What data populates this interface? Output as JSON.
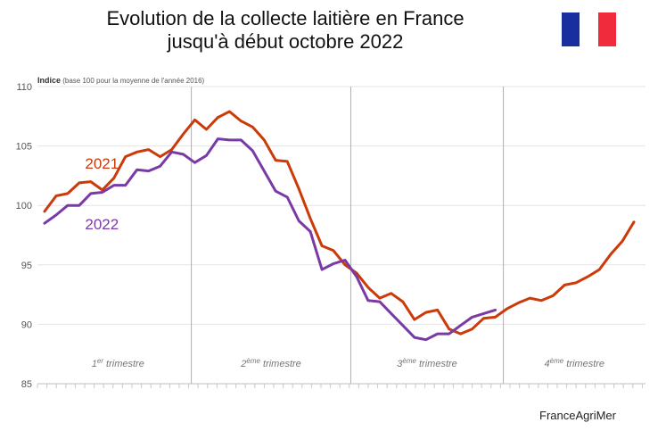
{
  "title_line1": "Evolution de la collecte laitière en France",
  "title_line2": "jusqu'à début octobre 2022",
  "credit": "FranceAgriMer",
  "flag": {
    "colors": [
      "#1a2f9e",
      "#ffffff",
      "#ef2b3c"
    ]
  },
  "chart_data": {
    "type": "line",
    "ylabel_main": "Indice",
    "ylabel_note": "(base 100 pour la moyenne de l'année 2016)",
    "ylim": [
      85,
      110
    ],
    "yticks": [
      85,
      90,
      95,
      100,
      105,
      110
    ],
    "x_count": 53,
    "quarter_boundaries": [
      12.7,
      26.5,
      39.7
    ],
    "quarters": [
      {
        "num": "1",
        "sup": "er",
        "text": " trimestre"
      },
      {
        "num": "2",
        "sup": "ème",
        "text": " trimestre"
      },
      {
        "num": "3",
        "sup": "ème",
        "text": " trimestre"
      },
      {
        "num": "4",
        "sup": "ème",
        "text": " trimestre"
      }
    ],
    "series": [
      {
        "name": "2021",
        "color": "#cc3a0a",
        "values": [
          99.5,
          100.8,
          101.0,
          101.9,
          102.0,
          101.3,
          102.3,
          104.1,
          104.5,
          104.7,
          104.1,
          104.7,
          106.0,
          107.2,
          106.4,
          107.4,
          107.9,
          107.1,
          106.6,
          105.5,
          103.8,
          103.7,
          101.4,
          98.9,
          96.6,
          96.2,
          95.0,
          94.3,
          93.1,
          92.2,
          92.6,
          91.9,
          90.4,
          91.0,
          91.2,
          89.6,
          89.2,
          89.6,
          90.5,
          90.6,
          91.3,
          91.8,
          92.2,
          92.0,
          92.4,
          93.3,
          93.5,
          94.0,
          94.6,
          95.9,
          97.0,
          98.6
        ]
      },
      {
        "name": "2022",
        "color": "#7a3aa6",
        "values": [
          98.5,
          99.2,
          100.0,
          100.0,
          101.0,
          101.1,
          101.7,
          101.7,
          103.0,
          102.9,
          103.3,
          104.5,
          104.3,
          103.6,
          104.2,
          105.6,
          105.5,
          105.5,
          104.6,
          102.9,
          101.2,
          100.7,
          98.7,
          97.8,
          94.6,
          95.1,
          95.4,
          94.0,
          92.0,
          91.9,
          90.9,
          89.9,
          88.9,
          88.7,
          89.2,
          89.2,
          89.9,
          90.6,
          90.9,
          91.2
        ]
      }
    ],
    "series_label_pos": [
      [
        3.5,
        103.1
      ],
      [
        3.5,
        98.0
      ]
    ]
  }
}
